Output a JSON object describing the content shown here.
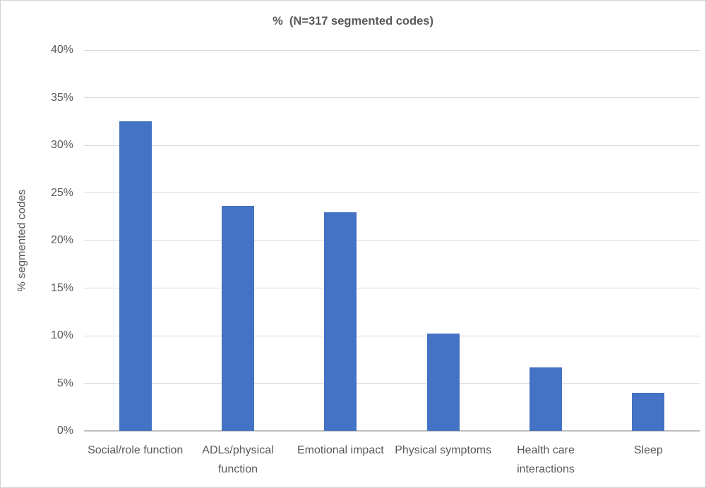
{
  "chart_data": {
    "type": "bar",
    "title": "%  (N=317 segmented codes)",
    "xlabel": "",
    "ylabel": "% segmented codes",
    "categories": [
      "Social/role function",
      "ADLs/physical function",
      "Emotional impact",
      "Physical symptoms",
      "Health care interactions",
      "Sleep"
    ],
    "values": [
      32.5,
      23.6,
      23.0,
      10.2,
      6.7,
      4.0
    ],
    "ylim": [
      0,
      40
    ],
    "ytick_step": 5,
    "ytick_suffix": "%",
    "grid": "horizontal",
    "legend": false,
    "colors": {
      "bar": "#4472c4",
      "gridline": "#d9d9d9",
      "axis_line": "#bfbfbf",
      "text": "#595959",
      "background": "#ffffff",
      "border": "#d2d2d2"
    }
  }
}
